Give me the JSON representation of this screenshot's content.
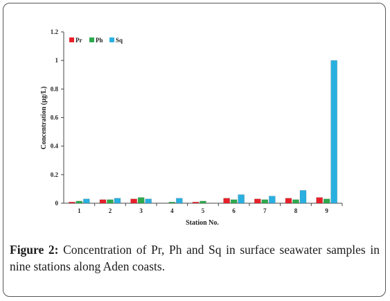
{
  "figure": {
    "label": "Figure 2:",
    "caption": " Concentration of Pr, Ph and Sq in surface seawater samples in nine stations along Aden coasts."
  },
  "chart_data": {
    "type": "bar",
    "xlabel": "Station No.",
    "ylabel": "Concentration (µg/L)",
    "categories": [
      "1",
      "2",
      "3",
      "4",
      "5",
      "6",
      "7",
      "8",
      "9"
    ],
    "ylim": [
      0,
      1.2
    ],
    "yticks": [
      "0",
      "0.2",
      "0.4",
      "0.6",
      "0.8",
      "1",
      "1.2"
    ],
    "grid": false,
    "legend_position": "top-left",
    "series": [
      {
        "name": "Pr",
        "color": "#e8202a",
        "values": [
          0.008,
          0.025,
          0.03,
          0,
          0.008,
          0.035,
          0.03,
          0.035,
          0.04
        ]
      },
      {
        "name": "Ph",
        "color": "#2eaa4e",
        "values": [
          0.015,
          0.025,
          0.04,
          0.008,
          0.015,
          0.025,
          0.025,
          0.025,
          0.03
        ]
      },
      {
        "name": "Sq",
        "color": "#2ab0e0",
        "values": [
          0.03,
          0.035,
          0.03,
          0.035,
          0,
          0.06,
          0.05,
          0.09,
          1.0
        ]
      }
    ]
  }
}
